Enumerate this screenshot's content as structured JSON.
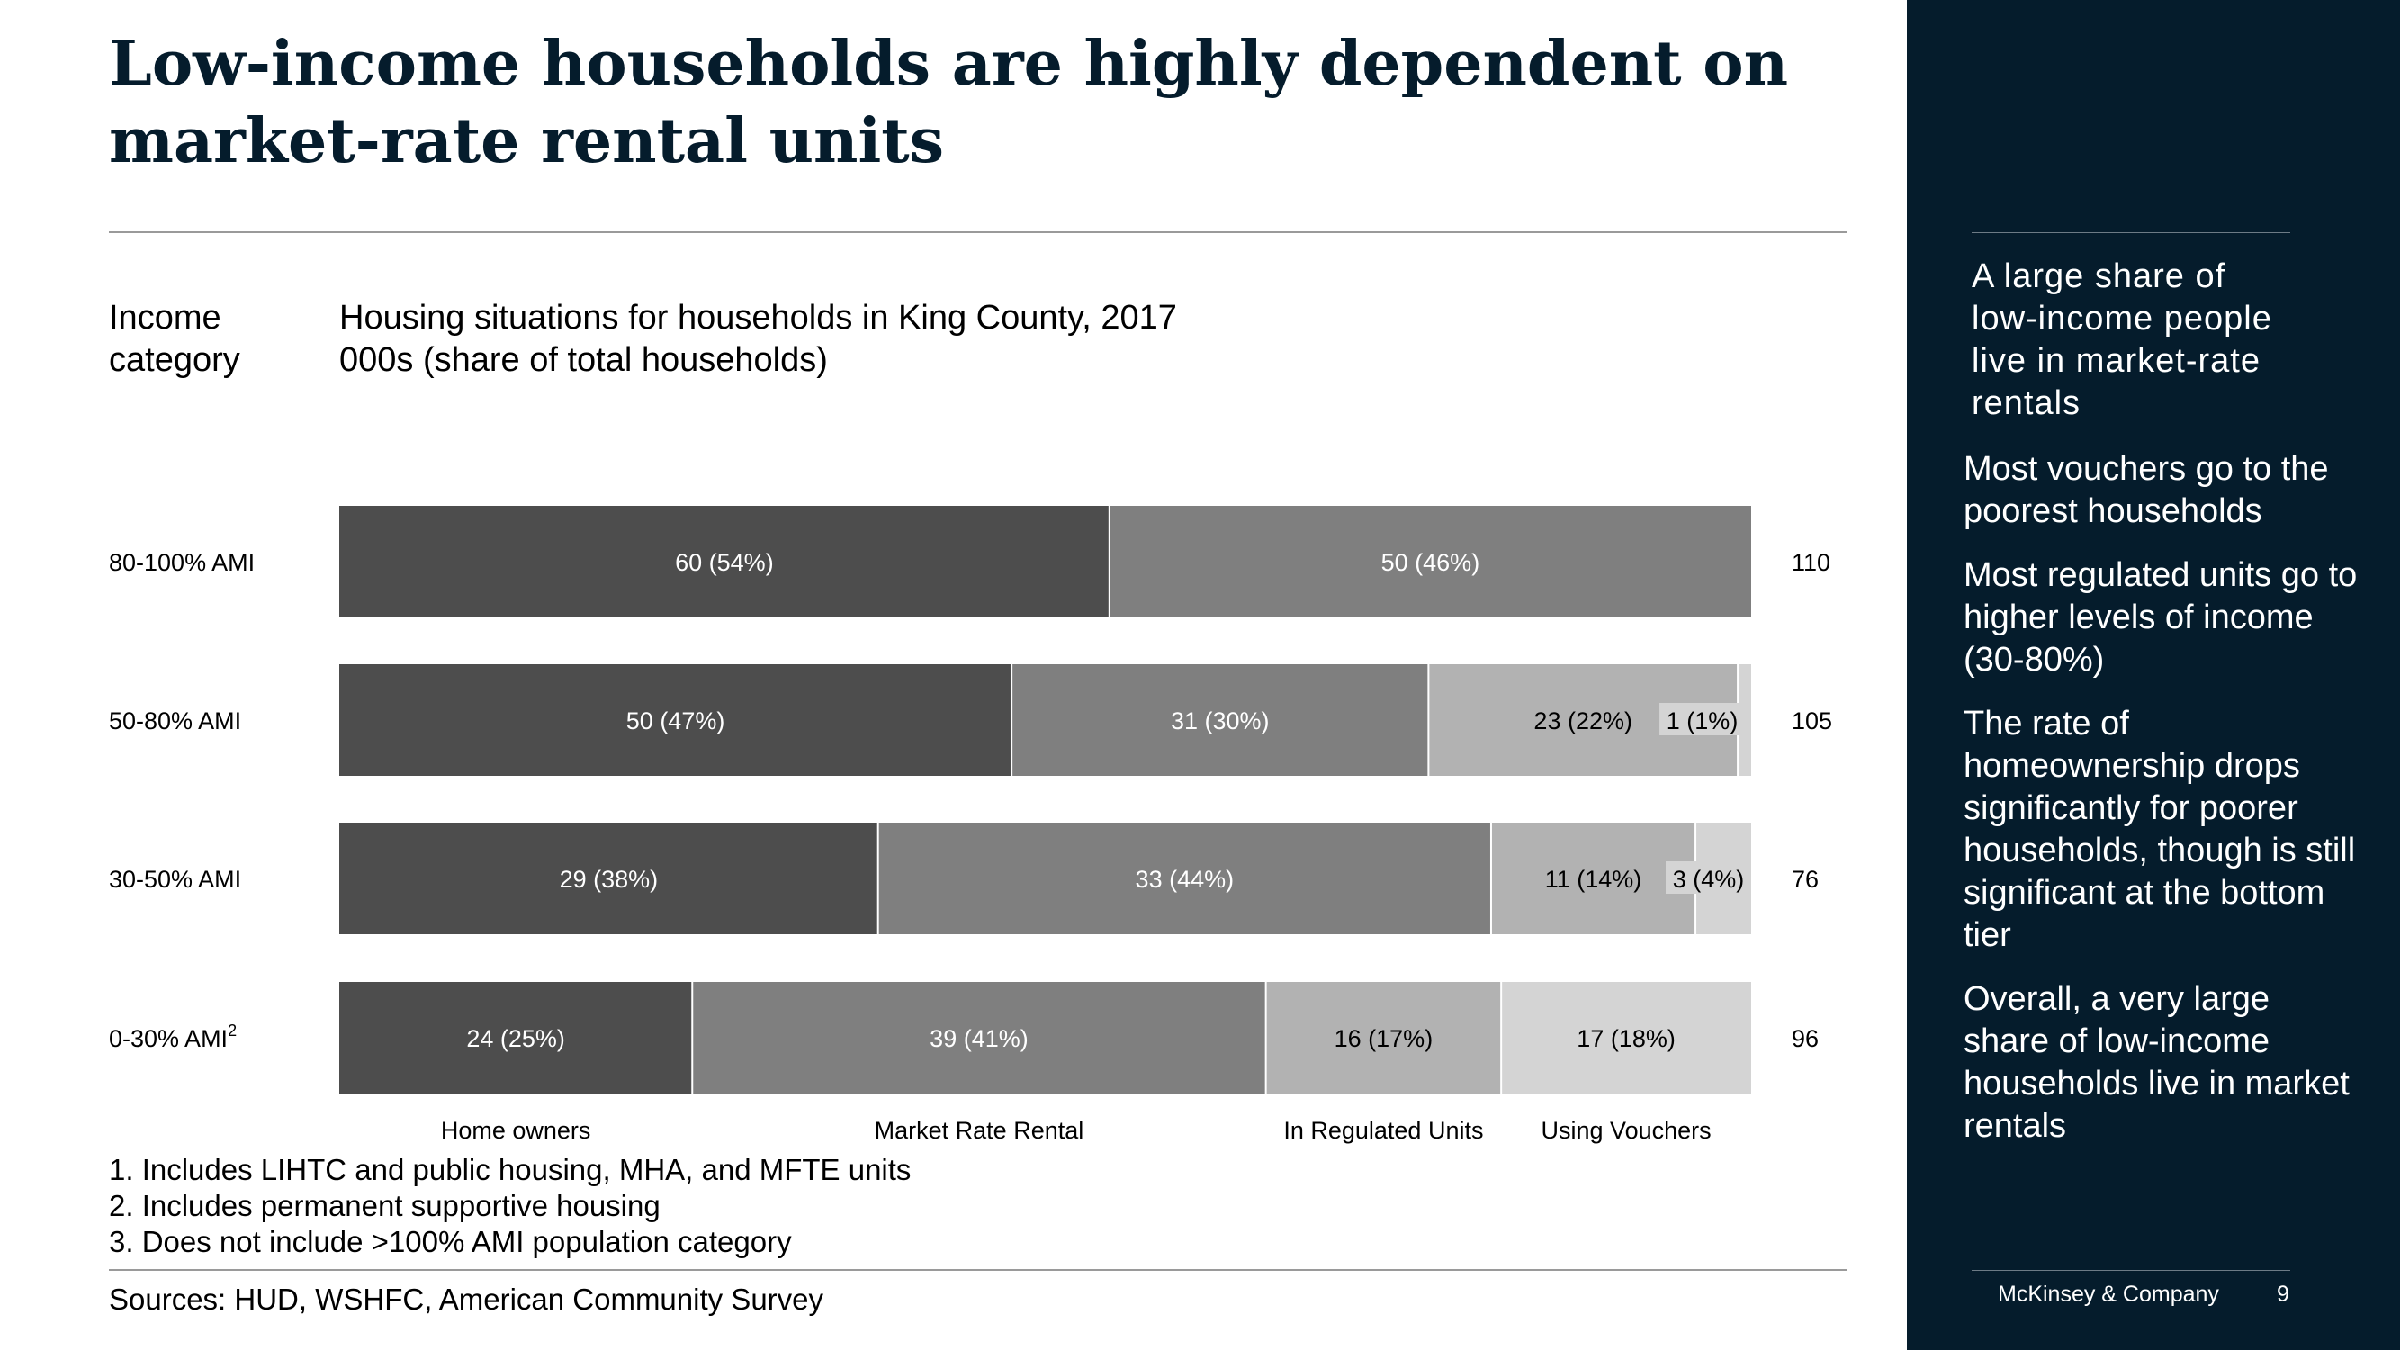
{
  "slide": {
    "title": "Low-income households are highly dependent on market-rate rental units",
    "income_category_label": "Income category",
    "footnotes": [
      "1. Includes LIHTC and public housing, MHA, and MFTE units",
      "2. Includes permanent supportive housing",
      "3. Does not include >100% AMI population category"
    ],
    "sources": "Sources: HUD, WSHFC, American Community Survey"
  },
  "sidebar": {
    "headline": "A large share of low-income people live in market-rate rentals",
    "points": [
      "Most vouchers go to the poorest households",
      "Most regulated units go to higher levels of income (30-80%)",
      "The rate of homeownership drops significantly for poorer households, though is still significant at the bottom tier",
      "Overall, a very large share of low-income households live in market rentals"
    ],
    "brand": "McKinsey & Company",
    "page_number": "9"
  },
  "colors": {
    "navy": "#051c2c",
    "home_owners": "#4d4d4d",
    "market_rate_rental": "#7f7f7f",
    "in_regulated_units": "#b2b2b2",
    "using_vouchers": "#d4d4d4"
  },
  "chart_data": {
    "type": "bar",
    "orientation": "horizontal",
    "stacked": true,
    "title": "Housing situations for households in King County, 2017",
    "subtitle": "000s (share of total households)",
    "categories": [
      "80-100% AMI",
      "50-80% AMI",
      "30-50% AMI",
      "0-30% AMI"
    ],
    "category_superscripts": [
      "",
      "",
      "",
      "2"
    ],
    "series": [
      {
        "name": "Home owners",
        "values": [
          60,
          50,
          29,
          24
        ],
        "labels": [
          "60 (54%)",
          "50 (47%)",
          "29 (38%)",
          "24 (25%)"
        ]
      },
      {
        "name": "Market Rate Rental",
        "values": [
          50,
          31,
          33,
          39
        ],
        "labels": [
          "50 (46%)",
          "31 (30%)",
          "33 (44%)",
          "39 (41%)"
        ]
      },
      {
        "name": "In Regulated Units",
        "values": [
          0,
          23,
          11,
          16
        ],
        "labels": [
          "",
          "23 (22%)",
          "11 (14%)",
          "16 (17%)"
        ]
      },
      {
        "name": "Using Vouchers",
        "values": [
          0,
          1,
          3,
          17
        ],
        "labels": [
          "",
          "1 (1%)",
          "3 (4%)",
          "17 (18%)"
        ]
      }
    ],
    "totals": [
      "110",
      "105",
      "76",
      "96"
    ],
    "normalized_to_100_percent": true
  }
}
